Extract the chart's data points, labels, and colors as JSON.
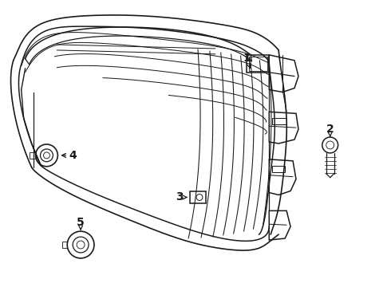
{
  "bg_color": "#ffffff",
  "line_color": "#1a1a1a",
  "lw": 0.9,
  "fig_w": 4.9,
  "fig_h": 3.6,
  "dpi": 100
}
